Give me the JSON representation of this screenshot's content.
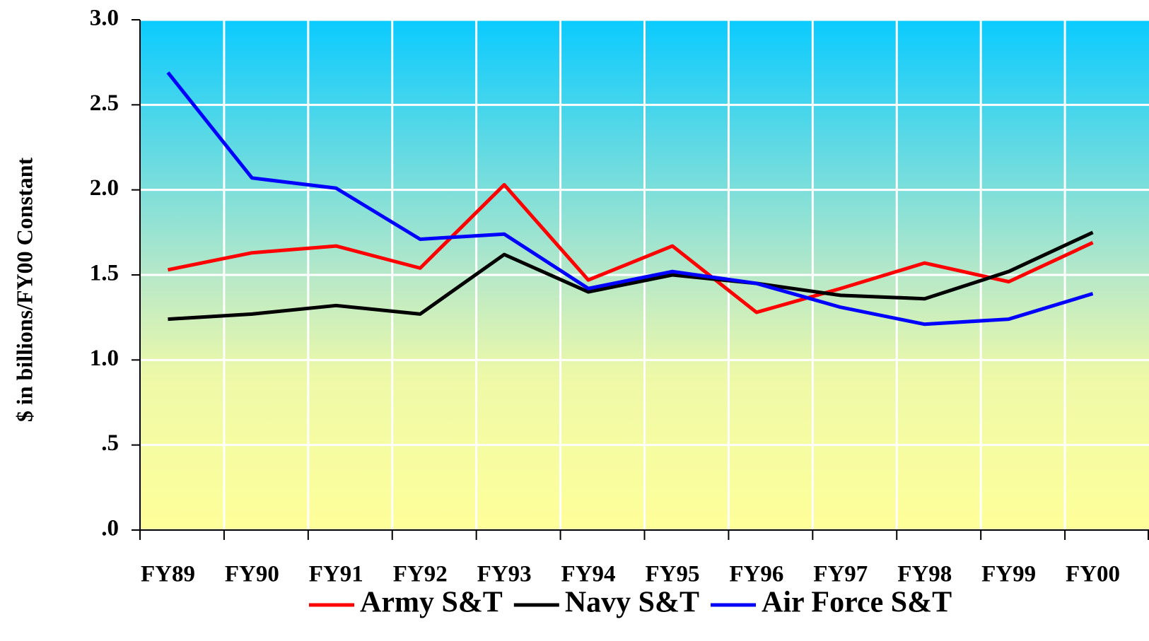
{
  "chart_data": {
    "type": "line",
    "y_label": "$ in billions/FY00 Constant",
    "categories": [
      "FY89",
      "FY90",
      "FY91",
      "FY92",
      "FY93",
      "FY94",
      "FY95",
      "FY96",
      "FY97",
      "FY98",
      "FY99",
      "FY00"
    ],
    "series": [
      {
        "name": "Army S&T",
        "color": "#ff0000",
        "values": [
          1.53,
          1.63,
          1.67,
          1.54,
          2.03,
          1.47,
          1.67,
          1.28,
          1.42,
          1.57,
          1.46,
          1.69
        ]
      },
      {
        "name": "Navy S&T",
        "color": "#000000",
        "values": [
          1.24,
          1.27,
          1.32,
          1.27,
          1.62,
          1.4,
          1.5,
          1.45,
          1.38,
          1.36,
          1.52,
          1.75
        ]
      },
      {
        "name": "Air Force S&T",
        "color": "#0000ff",
        "values": [
          2.69,
          2.07,
          2.01,
          1.71,
          1.74,
          1.42,
          1.52,
          1.45,
          1.31,
          1.21,
          1.24,
          1.39
        ]
      }
    ],
    "ylim": [
      0,
      3
    ],
    "yticks": [
      {
        "value": 0,
        "label": ".0"
      },
      {
        "value": 0.5,
        "label": ".5"
      },
      {
        "value": 1,
        "label": "1.0"
      },
      {
        "value": 1.5,
        "label": "1.5"
      },
      {
        "value": 2,
        "label": "2.0"
      },
      {
        "value": 2.5,
        "label": "2.5"
      },
      {
        "value": 3,
        "label": "3.0"
      }
    ],
    "grid": true,
    "legend": "bottom"
  }
}
